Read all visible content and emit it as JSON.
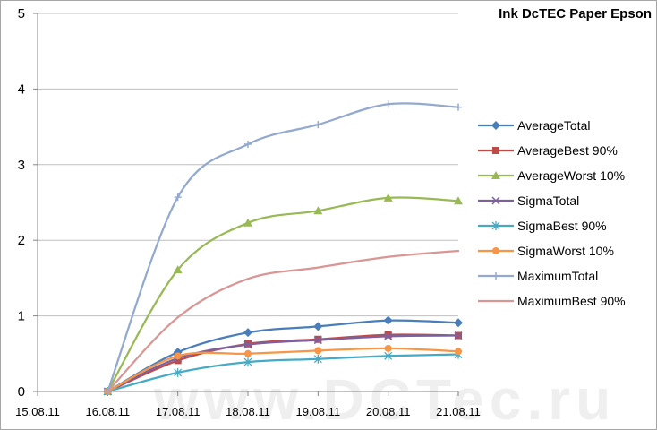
{
  "chart_data": {
    "type": "line",
    "title": "Ink DcTEC Paper Epson",
    "xlabel": "",
    "ylabel": "",
    "categories": [
      "15.08.11",
      "16.08.11",
      "17.08.11",
      "18.08.11",
      "19.08.11",
      "20.08.11",
      "21.08.11"
    ],
    "ylim": [
      0,
      5
    ],
    "yticks": [
      "0",
      "1",
      "2",
      "3",
      "4",
      "5"
    ],
    "grid": "horizontal",
    "legend": "right",
    "series": [
      {
        "name": "AverageTotal",
        "color": "#4a7ebb",
        "marker": "diamond",
        "values": [
          null,
          0,
          0.52,
          0.78,
          0.86,
          0.94,
          0.91
        ]
      },
      {
        "name": "AverageBest 90%",
        "color": "#be4b48",
        "marker": "square",
        "values": [
          null,
          0,
          0.41,
          0.63,
          0.69,
          0.75,
          0.74
        ]
      },
      {
        "name": "AverageWorst 10%",
        "color": "#98b954",
        "marker": "triangle",
        "values": [
          null,
          0,
          1.61,
          2.23,
          2.39,
          2.56,
          2.52
        ]
      },
      {
        "name": "SigmaTotal",
        "color": "#7d60a0",
        "marker": "x",
        "values": [
          null,
          0,
          0.44,
          0.62,
          0.68,
          0.73,
          0.74
        ]
      },
      {
        "name": "SigmaBest 90%",
        "color": "#46aac5",
        "marker": "star",
        "values": [
          null,
          0,
          0.25,
          0.39,
          0.43,
          0.47,
          0.49
        ]
      },
      {
        "name": "SigmaWorst 10%",
        "color": "#f79646",
        "marker": "circle",
        "values": [
          null,
          0,
          0.47,
          0.5,
          0.54,
          0.57,
          0.53
        ]
      },
      {
        "name": "MaximumTotal",
        "color": "#93a9cf",
        "marker": "plus",
        "values": [
          null,
          0,
          2.57,
          3.27,
          3.53,
          3.8,
          3.76
        ]
      },
      {
        "name": "MaximumBest 90%",
        "color": "#d99694",
        "marker": "none",
        "values": [
          null,
          0,
          0.98,
          1.49,
          1.64,
          1.78,
          1.86
        ]
      }
    ],
    "watermark": "www.DCTec.ru"
  }
}
